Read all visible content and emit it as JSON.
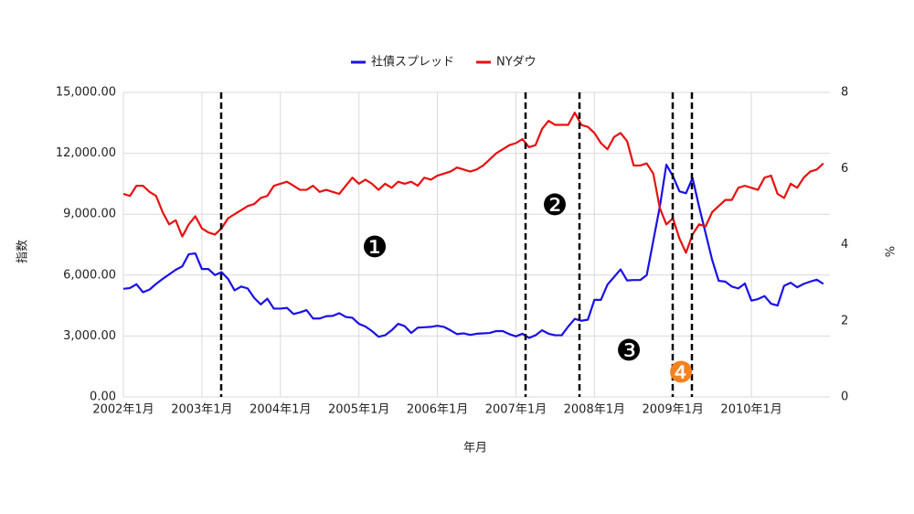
{
  "chart_data": {
    "type": "line",
    "xlabel": "年月",
    "ylabel": "指数",
    "y2label": "%",
    "categories": [
      "2002年1月",
      null,
      null,
      null,
      null,
      null,
      null,
      null,
      null,
      null,
      null,
      null,
      "2003年1月",
      null,
      null,
      null,
      null,
      null,
      null,
      null,
      null,
      null,
      null,
      null,
      "2004年1月",
      null,
      null,
      null,
      null,
      null,
      null,
      null,
      null,
      null,
      null,
      null,
      "2005年1月",
      null,
      null,
      null,
      null,
      null,
      null,
      null,
      null,
      null,
      null,
      null,
      "2006年1月",
      null,
      null,
      null,
      null,
      null,
      null,
      null,
      null,
      null,
      null,
      null,
      "2007年1月",
      null,
      null,
      null,
      null,
      null,
      null,
      null,
      null,
      null,
      null,
      null,
      "2008年1月",
      null,
      null,
      null,
      null,
      null,
      null,
      null,
      null,
      null,
      null,
      null,
      "2009年1月",
      null,
      null,
      null,
      null,
      null,
      null,
      null,
      null,
      null,
      null,
      null,
      "2010年1月",
      null,
      null,
      null,
      null,
      null,
      null,
      null,
      null,
      null,
      null,
      null
    ],
    "series": [
      {
        "name": "社債スプレッド",
        "color": "#1a10e6",
        "axis": "y2",
        "values": [
          2.84,
          2.86,
          2.96,
          2.75,
          2.82,
          2.97,
          3.1,
          3.22,
          3.34,
          3.43,
          3.75,
          3.77,
          3.36,
          3.36,
          3.2,
          3.28,
          3.1,
          2.8,
          2.9,
          2.85,
          2.6,
          2.43,
          2.58,
          2.32,
          2.32,
          2.34,
          2.18,
          2.22,
          2.28,
          2.06,
          2.06,
          2.12,
          2.13,
          2.2,
          2.1,
          2.08,
          1.92,
          1.85,
          1.73,
          1.58,
          1.62,
          1.75,
          1.92,
          1.86,
          1.68,
          1.82,
          1.83,
          1.84,
          1.87,
          1.84,
          1.75,
          1.65,
          1.67,
          1.63,
          1.66,
          1.67,
          1.68,
          1.73,
          1.73,
          1.65,
          1.59,
          1.66,
          1.55,
          1.62,
          1.75,
          1.66,
          1.62,
          1.62,
          1.85,
          2.05,
          2.0,
          2.03,
          2.55,
          2.55,
          2.95,
          3.15,
          3.35,
          3.06,
          3.07,
          3.07,
          3.2,
          4.1,
          5.0,
          6.1,
          5.8,
          5.4,
          5.35,
          5.75,
          5.0,
          4.3,
          3.6,
          3.05,
          3.03,
          2.9,
          2.85,
          2.98,
          2.53,
          2.57,
          2.65,
          2.45,
          2.4,
          2.92,
          3.0,
          2.88,
          2.97,
          3.03,
          3.08,
          2.97
        ]
      },
      {
        "name": "NYダウ",
        "color": "#e81010",
        "values": [
          10000,
          9900,
          10400,
          10400,
          10100,
          9900,
          9100,
          8500,
          8700,
          7900,
          8500,
          8900,
          8300,
          8100,
          8000,
          8300,
          8800,
          9000,
          9200,
          9400,
          9500,
          9800,
          9900,
          10400,
          10500,
          10600,
          10400,
          10200,
          10200,
          10400,
          10100,
          10200,
          10100,
          10000,
          10400,
          10800,
          10500,
          10700,
          10500,
          10200,
          10500,
          10300,
          10600,
          10500,
          10600,
          10400,
          10800,
          10700,
          10900,
          11000,
          11100,
          11300,
          11200,
          11100,
          11200,
          11400,
          11700,
          12000,
          12200,
          12400,
          12500,
          12700,
          12300,
          12400,
          13200,
          13600,
          13400,
          13400,
          13400,
          14000,
          13400,
          13300,
          13000,
          12500,
          12200,
          12800,
          13000,
          12600,
          11400,
          11400,
          11500,
          11000,
          9300,
          8500,
          8800,
          7800,
          7100,
          8000,
          8500,
          8400,
          9100,
          9400,
          9700,
          9700,
          10300,
          10400,
          10300,
          10200,
          10800,
          10900,
          10000,
          9800,
          10500,
          10300,
          10800,
          11100,
          11200,
          11500
        ]
      }
    ],
    "ylim": [
      0,
      15000
    ],
    "yticks": [
      {
        "value": 0,
        "label": "0.00"
      },
      {
        "value": 3000,
        "label": "3,000.00"
      },
      {
        "value": 6000,
        "label": "6,000.00"
      },
      {
        "value": 9000,
        "label": "9,000.00"
      },
      {
        "value": 12000,
        "label": "12,000.00"
      },
      {
        "value": 15000,
        "label": "15,000.00"
      }
    ],
    "y2lim": [
      0,
      8
    ],
    "y2ticks": [
      0,
      2,
      4,
      6,
      8
    ],
    "grid": true,
    "legend": "top",
    "annotations": [
      {
        "text": "❶",
        "color": "#000000"
      },
      {
        "text": "❷",
        "color": "#000000"
      },
      {
        "text": "❸",
        "color": "#000000"
      },
      {
        "text": "❹",
        "color": "#f5821f"
      }
    ]
  }
}
